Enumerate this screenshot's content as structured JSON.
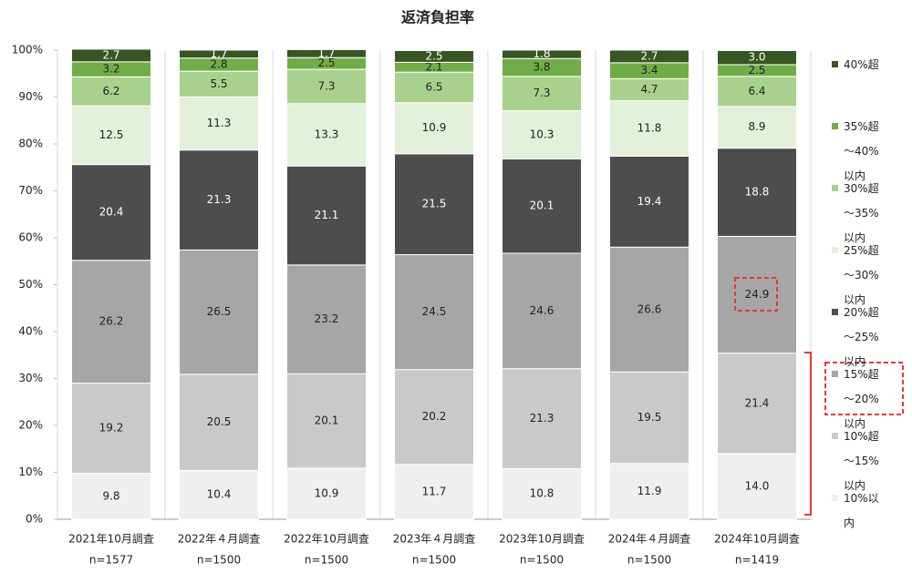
{
  "chart_data": {
    "type": "stacked_bar",
    "title": "返済負担率",
    "categories": [
      "2021年10月調査",
      "2022年４月調査",
      "2022年10月調査",
      "2023年４月調査",
      "2023年10月調査",
      "2024年４月調査",
      "2024年10月調査"
    ],
    "category_notes": [
      "n=1577",
      "n=1500",
      "n=1500",
      "n=1500",
      "n=1500",
      "n=1500",
      "n=1419"
    ],
    "ylim": [
      0,
      100
    ],
    "yticks": [
      {
        "value": 0,
        "label": "0%"
      },
      {
        "value": 10,
        "label": "10%"
      },
      {
        "value": 20,
        "label": "20%"
      },
      {
        "value": 30,
        "label": "30%"
      },
      {
        "value": 40,
        "label": "40%"
      },
      {
        "value": 50,
        "label": "50%"
      },
      {
        "value": 60,
        "label": "60%"
      },
      {
        "value": 70,
        "label": "70%"
      },
      {
        "value": 80,
        "label": "80%"
      },
      {
        "value": 90,
        "label": "90%"
      },
      {
        "value": 100,
        "label": "100%"
      }
    ],
    "series": [
      {
        "name": "10%以内",
        "color": "#efefef",
        "values": [
          9.8,
          10.4,
          10.9,
          11.7,
          10.8,
          11.9,
          14.0
        ],
        "value_labels": [
          "9.8",
          "10.4",
          "10.9",
          "11.7",
          "10.8",
          "11.9",
          "14.0"
        ]
      },
      {
        "name": "10%超～15%以内",
        "color": "#c9c9c9",
        "values": [
          19.2,
          20.5,
          20.1,
          20.2,
          21.3,
          19.5,
          21.4
        ],
        "value_labels": [
          "19.2",
          "20.5",
          "20.1",
          "20.2",
          "21.3",
          "19.5",
          "21.4"
        ]
      },
      {
        "name": "15%超～20%以内",
        "color": "#a6a6a6",
        "values": [
          26.2,
          26.5,
          23.2,
          24.5,
          24.6,
          26.6,
          24.9
        ],
        "value_labels": [
          "26.2",
          "26.5",
          "23.2",
          "24.5",
          "24.6",
          "26.6",
          "24.9"
        ]
      },
      {
        "name": "20%超～25%以内",
        "color": "#4d4d4d",
        "values": [
          20.4,
          21.3,
          21.1,
          21.5,
          20.1,
          19.4,
          18.8
        ],
        "value_labels": [
          "20.4",
          "21.3",
          "21.1",
          "21.5",
          "20.1",
          "19.4",
          "18.8"
        ]
      },
      {
        "name": "25%超～30%以内",
        "color": "#e3f0da",
        "values": [
          12.5,
          11.3,
          13.3,
          10.9,
          10.3,
          11.8,
          8.9
        ],
        "value_labels": [
          "12.5",
          "11.3",
          "13.3",
          "10.9",
          "10.3",
          "11.8",
          "8.9"
        ]
      },
      {
        "name": "30%超～35%以内",
        "color": "#a9d18e",
        "values": [
          6.2,
          5.5,
          7.3,
          6.5,
          7.3,
          4.7,
          6.4
        ],
        "value_labels": [
          "6.2",
          "5.5",
          "7.3",
          "6.5",
          "7.3",
          "4.7",
          "6.4"
        ]
      },
      {
        "name": "35%超～40%以内",
        "color": "#70ad47",
        "values": [
          3.2,
          2.8,
          2.5,
          2.1,
          3.8,
          3.4,
          2.5
        ],
        "value_labels": [
          "3.2",
          "2.8",
          "2.5",
          "2.1",
          "3.8",
          "3.4",
          "2.5"
        ]
      },
      {
        "name": "40%超",
        "color": "#375623",
        "values": [
          2.7,
          1.7,
          1.7,
          2.5,
          1.8,
          2.7,
          3.0
        ],
        "value_labels": [
          "2.7",
          "1.7",
          "1.7",
          "2.5",
          "1.8",
          "2.7",
          "3.0"
        ]
      }
    ]
  }
}
